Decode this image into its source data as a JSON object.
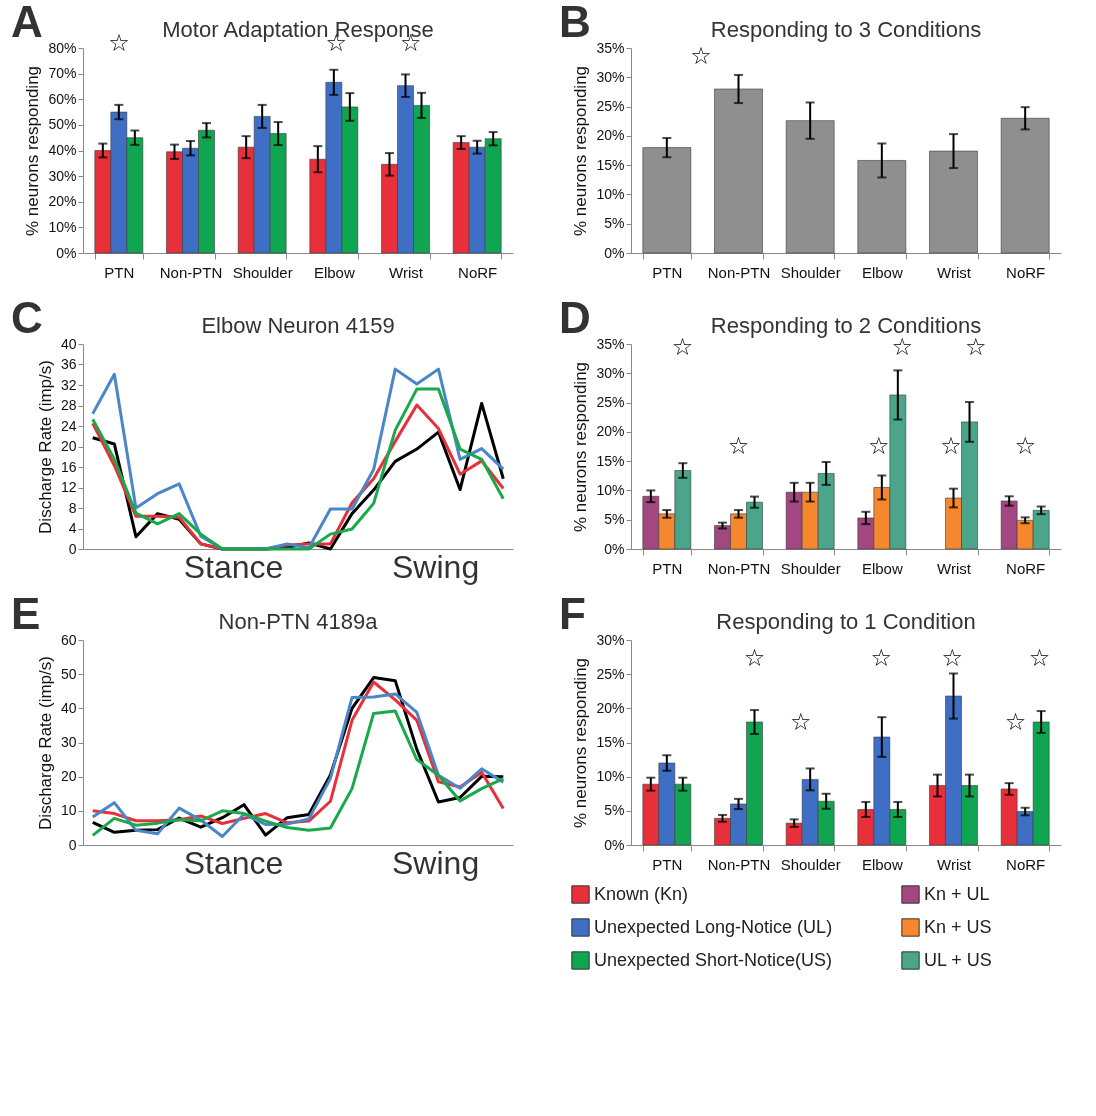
{
  "chart_data": [
    {
      "type": "bar",
      "title": "Motor Adaptation Response",
      "ylabel": "% neurons responding",
      "categories": [
        "PTN",
        "Non-PTN",
        "Shoulder",
        "Elbow",
        "Wrist",
        "NoRF"
      ],
      "series": [
        {
          "color": "#e8303a",
          "values": [
            40,
            39.5,
            41.3,
            36.6,
            34.6,
            43.1
          ],
          "errors": [
            2.7,
            2.8,
            4.3,
            5.1,
            4.4,
            2.5
          ]
        },
        {
          "color": "#3f6fc4",
          "values": [
            55,
            40.9,
            53.3,
            66.6,
            65.3,
            41.3
          ],
          "errors": [
            2.8,
            2.8,
            4.5,
            4.9,
            4.4,
            2.5
          ]
        },
        {
          "color": "#10a550",
          "values": [
            45,
            47.9,
            46.6,
            57,
            57.6,
            44.6
          ],
          "errors": [
            2.8,
            2.8,
            4.5,
            5.4,
            4.9,
            2.6
          ]
        }
      ],
      "ylim": [
        0,
        80
      ],
      "yticks": [
        {
          "value": 0,
          "label": "0%"
        },
        {
          "value": 10,
          "label": "10%"
        },
        {
          "value": 20,
          "label": "20%"
        },
        {
          "value": 30,
          "label": "30%"
        },
        {
          "value": 40,
          "label": "40%"
        },
        {
          "value": 50,
          "label": "50%"
        },
        {
          "value": 60,
          "label": "60%"
        },
        {
          "value": 70,
          "label": "70%"
        },
        {
          "value": 80,
          "label": "80%"
        }
      ],
      "annotations": [
        "A",
        "☆",
        "☆",
        "☆"
      ]
    },
    {
      "type": "bar",
      "title": "Responding to 3 Conditions",
      "ylabel": "% neurons responding",
      "categories": [
        "PTN",
        "Non-PTN",
        "Shoulder",
        "Elbow",
        "Wrist",
        "NoRF"
      ],
      "series": [
        {
          "color": "#8f8f8f",
          "values": [
            18,
            28,
            22.6,
            15.8,
            17.4,
            23
          ],
          "errors": [
            1.65,
            2.4,
            3.1,
            2.9,
            2.9,
            1.9
          ]
        }
      ],
      "ylim": [
        0,
        35
      ],
      "yticks": [
        {
          "value": 0,
          "label": "0%"
        },
        {
          "value": 5,
          "label": "5%"
        },
        {
          "value": 10,
          "label": "10%"
        },
        {
          "value": 15,
          "label": "15%"
        },
        {
          "value": 20,
          "label": "20%"
        },
        {
          "value": 25,
          "label": "25%"
        },
        {
          "value": 30,
          "label": "30%"
        },
        {
          "value": 35,
          "label": "35%"
        }
      ],
      "annotations": [
        "B",
        "☆"
      ]
    },
    {
      "type": "line",
      "title": "Elbow Neuron 4159",
      "ylabel": "Discharge Rate (imp/s)",
      "categories": [
        null,
        null,
        null,
        null,
        null,
        null,
        null,
        null,
        null,
        null,
        null,
        null,
        null,
        null,
        null,
        null,
        null,
        null,
        null,
        null
      ],
      "series": [
        {
          "color": "#000000",
          "values": [
            21.7,
            20.5,
            2.4,
            6.9,
            5.8,
            1,
            0,
            0,
            0,
            0.3,
            1.2,
            0,
            6.9,
            11.5,
            17.1,
            19.5,
            22.8,
            11.6,
            28.4,
            13.7
          ]
        },
        {
          "color": "#e8303a",
          "values": [
            24.5,
            16.3,
            6.4,
            6.4,
            6.2,
            1,
            0,
            0,
            0,
            0.8,
            1,
            1,
            9,
            13.7,
            21,
            28.1,
            23.5,
            14.6,
            17.2,
            11.8
          ]
        },
        {
          "color": "#4a86c8",
          "values": [
            26.4,
            34.1,
            8,
            10.8,
            12.7,
            2.5,
            0,
            0,
            0,
            1,
            0.2,
            7.8,
            7.8,
            15.5,
            35.1,
            32.2,
            35.1,
            17.5,
            19.6,
            15.6
          ]
        },
        {
          "color": "#19a84a",
          "values": [
            25.3,
            17.5,
            7,
            4.9,
            6.9,
            2.9,
            0,
            0,
            0,
            0,
            0,
            2.9,
            3.9,
            8.9,
            23.2,
            31.2,
            31.2,
            19.5,
            17.5,
            9.8
          ]
        }
      ],
      "ylim": [
        0,
        40
      ],
      "yticks": [
        0,
        4,
        8,
        12,
        16,
        20,
        24,
        28,
        32,
        36,
        40
      ],
      "tick_labels": "y",
      "line_style": "solid",
      "annotations": [
        "C",
        "Stance",
        "Swing"
      ]
    },
    {
      "type": "bar",
      "title": "Responding to 2 Conditions",
      "ylabel": "% neurons responding",
      "categories": [
        "PTN",
        "Non-PTN",
        "Shoulder",
        "Elbow",
        "Wrist",
        "NoRF"
      ],
      "series": [
        {
          "name": "Kn + UL",
          "color": "#a2477f",
          "values": [
            9,
            4,
            9.7,
            5.3,
            null,
            8.2
          ],
          "errors": [
            1,
            0.5,
            1.6,
            1.05,
            null,
            0.8
          ]
        },
        {
          "name": "Kn + US",
          "color": "#f5882f",
          "values": [
            6,
            6,
            9.7,
            10.5,
            8.7,
            4.9
          ],
          "errors": [
            0.65,
            0.65,
            1.6,
            2.05,
            1.6,
            0.5
          ]
        },
        {
          "name": "UL + US",
          "color": "#4aa58a",
          "values": [
            13.4,
            8,
            12.9,
            26.3,
            21.7,
            6.6
          ],
          "errors": [
            1.25,
            0.95,
            1.95,
            4.2,
            3.4,
            0.65
          ]
        }
      ],
      "ylim": [
        0,
        35
      ],
      "yticks": [
        {
          "value": 0,
          "label": "0%"
        },
        {
          "value": 5,
          "label": "5%"
        },
        {
          "value": 10,
          "label": "10%"
        },
        {
          "value": 15,
          "label": "15%"
        },
        {
          "value": 20,
          "label": "20%"
        },
        {
          "value": 25,
          "label": "25%"
        },
        {
          "value": 30,
          "label": "30%"
        },
        {
          "value": 35,
          "label": "35%"
        }
      ],
      "legend": "bottom",
      "annotations": [
        "D",
        "☆",
        "☆",
        "☆",
        "☆",
        "☆",
        "☆",
        "☆"
      ]
    },
    {
      "type": "line",
      "title": "Non-PTN 4189a",
      "ylabel": "Discharge Rate (imp/s)",
      "categories": [
        null,
        null,
        null,
        null,
        null,
        null,
        null,
        null,
        null,
        null,
        null,
        null,
        null,
        null,
        null,
        null,
        null,
        null,
        null,
        null
      ],
      "series": [
        {
          "color": "#000000",
          "values": [
            6.6,
            3.7,
            4.3,
            4.5,
            7.9,
            5.2,
            8,
            11.8,
            2.9,
            8,
            8.9,
            20.5,
            40,
            49,
            48.1,
            28,
            12.6,
            13.9,
            20.1,
            20
          ]
        },
        {
          "color": "#e8303a",
          "values": [
            10,
            9.2,
            7.1,
            7.1,
            7.4,
            8.5,
            6.3,
            7.8,
            9.2,
            6.5,
            7,
            12.8,
            36.5,
            47.7,
            42.5,
            36.5,
            18.5,
            17,
            21.3,
            10.7
          ]
        },
        {
          "color": "#4a86c8",
          "values": [
            8.2,
            12.4,
            4.3,
            3.3,
            10.8,
            7.3,
            2.5,
            9,
            6,
            6.1,
            7.6,
            19.5,
            43.2,
            43.3,
            44.2,
            38.8,
            20.4,
            16.6,
            22.3,
            18.4
          ]
        },
        {
          "color": "#19a84a",
          "values": [
            2.8,
            7.8,
            5.8,
            6.4,
            7.4,
            7.1,
            10,
            9.2,
            7,
            5.1,
            4.3,
            5,
            16.5,
            38.5,
            39.2,
            25,
            20.4,
            12.9,
            16.5,
            19.4
          ]
        }
      ],
      "ylim": [
        0,
        60
      ],
      "yticks": [
        0,
        10,
        20,
        30,
        40,
        50,
        60
      ],
      "tick_labels": "y",
      "line_style": "solid",
      "annotations": [
        "E",
        "Stance",
        "Swing"
      ]
    },
    {
      "type": "bar",
      "title": "Responding to 1 Condition",
      "ylabel": "% neurons responding",
      "categories": [
        "PTN",
        "Non-PTN",
        "Shoulder",
        "Elbow",
        "Wrist",
        "NoRF"
      ],
      "series": [
        {
          "name": "Known (Kn)",
          "color": "#e8303a",
          "values": [
            8.9,
            3.9,
            3.2,
            5.2,
            8.7,
            8.2
          ],
          "errors": [
            0.95,
            0.5,
            0.55,
            1.1,
            1.6,
            0.85
          ]
        },
        {
          "name": "Unexpected Long-Notice (UL)",
          "color": "#3f6fc4",
          "values": [
            12,
            6,
            9.6,
            15.8,
            21.8,
            4.9
          ],
          "errors": [
            1.15,
            0.75,
            1.6,
            2.9,
            3.3,
            0.55
          ]
        },
        {
          "name": "Unexpected Short-Notice(US)",
          "color": "#10a550",
          "values": [
            8.9,
            18,
            6.4,
            5.2,
            8.7,
            18
          ],
          "errors": [
            0.95,
            1.75,
            1.1,
            1.1,
            1.6,
            1.6
          ]
        }
      ],
      "ylim": [
        0,
        30
      ],
      "yticks": [
        {
          "value": 0,
          "label": "0%"
        },
        {
          "value": 5,
          "label": "5%"
        },
        {
          "value": 10,
          "label": "10%"
        },
        {
          "value": 15,
          "label": "15%"
        },
        {
          "value": 20,
          "label": "20%"
        },
        {
          "value": 25,
          "label": "25%"
        },
        {
          "value": 30,
          "label": "30%"
        }
      ],
      "legend": "bottom",
      "annotations": [
        "F",
        "☆",
        "☆",
        "☆",
        "☆",
        "☆",
        "☆"
      ]
    }
  ]
}
